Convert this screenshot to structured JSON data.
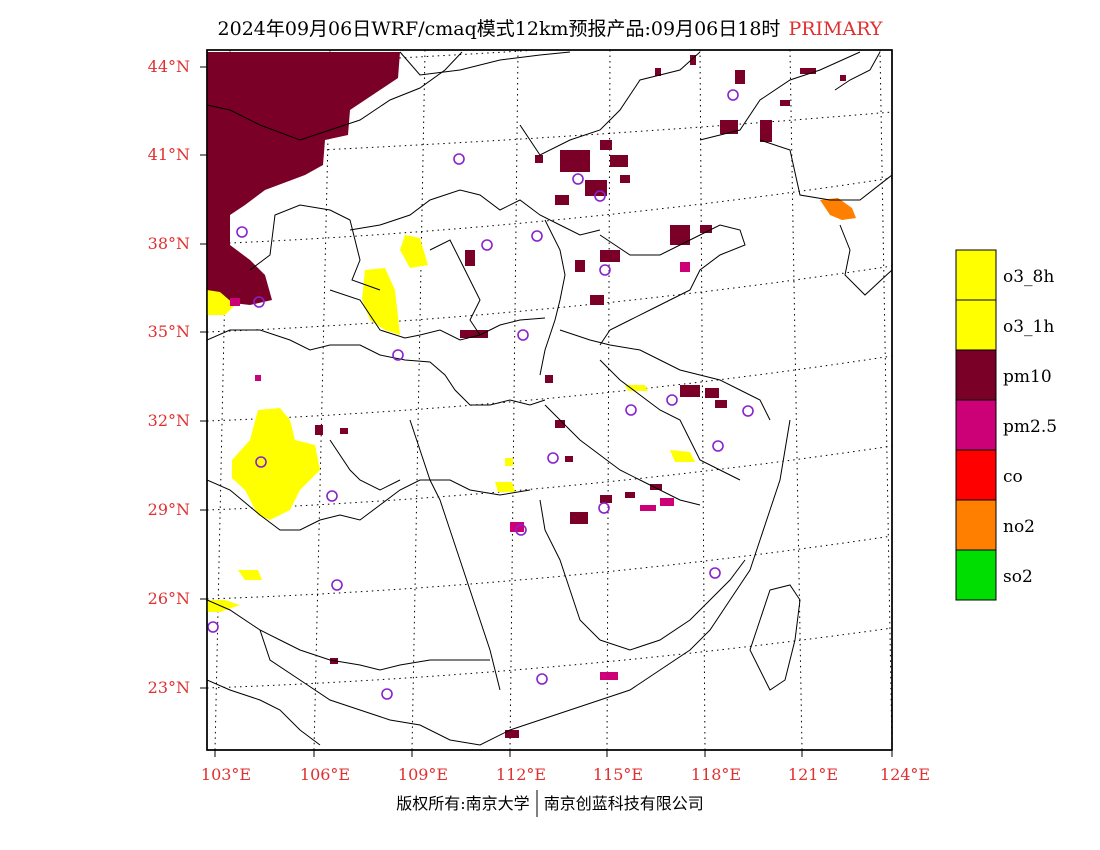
{
  "title": {
    "main": "2024年09月06日WRF/cmaq模式12km预报产品:09月06日18时",
    "tag": "PRIMARY"
  },
  "map": {
    "lat_labels": [
      "44°N",
      "41°N",
      "38°N",
      "35°N",
      "32°N",
      "29°N",
      "26°N",
      "23°N"
    ],
    "lon_labels": [
      "103°E",
      "106°E",
      "109°E",
      "112°E",
      "115°E",
      "118°E",
      "121°E",
      "124°E"
    ]
  },
  "legend": {
    "items": [
      {
        "label": "o3_8h",
        "color": "#ffff00"
      },
      {
        "label": "o3_1h",
        "color": "#ffff00"
      },
      {
        "label": "pm10",
        "color": "#7a0028"
      },
      {
        "label": "pm2.5",
        "color": "#cc0077"
      },
      {
        "label": "co",
        "color": "#ff0000"
      },
      {
        "label": "no2",
        "color": "#ff7f00"
      },
      {
        "label": "so2",
        "color": "#00dd00"
      }
    ]
  },
  "footer": {
    "left": "版权所有:南京大学",
    "right": "南京创蓝科技有限公司"
  }
}
